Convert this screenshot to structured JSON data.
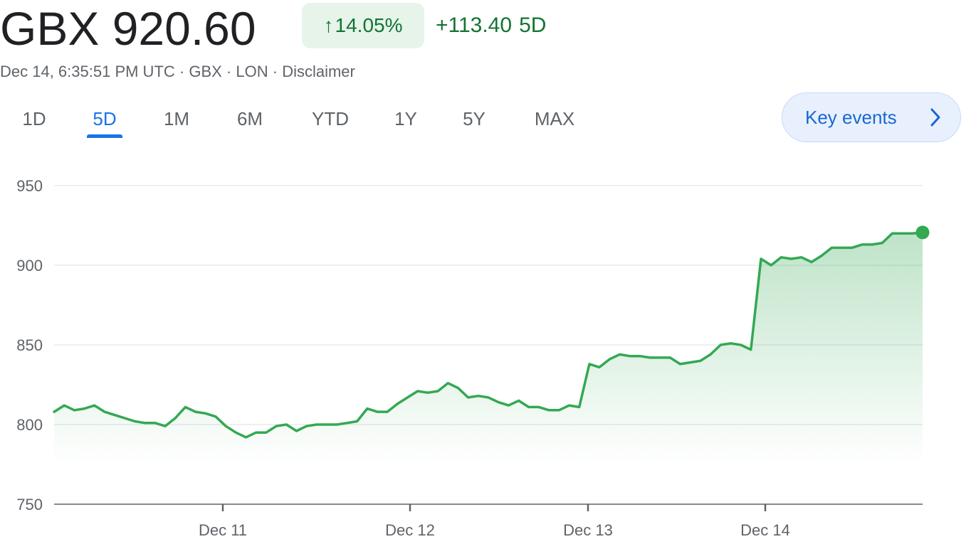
{
  "quote": {
    "price_text": "GBX 920.60",
    "pct_change": "14.05%",
    "abs_change": "+113.40",
    "period": "5D",
    "updated": "Dec 14, 6:35:51 PM UTC",
    "currency": "GBX",
    "exchange": "LON",
    "disclaimer": "Disclaimer",
    "separator": " · "
  },
  "tabs": [
    {
      "label": "1D",
      "active": false
    },
    {
      "label": "5D",
      "active": true
    },
    {
      "label": "1M",
      "active": false
    },
    {
      "label": "6M",
      "active": false
    },
    {
      "label": "YTD",
      "active": false
    },
    {
      "label": "1Y",
      "active": false
    },
    {
      "label": "5Y",
      "active": false
    },
    {
      "label": "MAX",
      "active": false
    }
  ],
  "key_events": {
    "label": "Key events",
    "icon": "chevron-right-icon"
  },
  "colors": {
    "line": "#34a853",
    "positive_text": "#137333",
    "positive_bg": "#e6f4ea",
    "accent": "#1a73e8",
    "grid": "#e8eaed",
    "axis_text": "#5f6368"
  },
  "chart_data": {
    "type": "area",
    "title": "",
    "xlabel": "",
    "ylabel": "",
    "ylim": [
      750,
      950
    ],
    "yticks": [
      950,
      900,
      850,
      800,
      750
    ],
    "xticks": [
      "Dec 11",
      "Dec 12",
      "Dec 13",
      "Dec 14"
    ],
    "grid": true,
    "series": [
      {
        "values": [
          808,
          812,
          809,
          810,
          812,
          808,
          806,
          804,
          802,
          801,
          801,
          799,
          804,
          811,
          808,
          807,
          805,
          799,
          795,
          792,
          795,
          795,
          799,
          800,
          796,
          799,
          800,
          800,
          800,
          801,
          802,
          810,
          808,
          808,
          813,
          817,
          821,
          820,
          821,
          826,
          823,
          817,
          818,
          817,
          814,
          812,
          815,
          811,
          811,
          809,
          809,
          812,
          811,
          838,
          836,
          841,
          844,
          843,
          843,
          842,
          842,
          842,
          838,
          839,
          840,
          844,
          850,
          851,
          850,
          847,
          904,
          900,
          905,
          904,
          905,
          902,
          906,
          911,
          911,
          911,
          913,
          913,
          914,
          920,
          920,
          920,
          920.6
        ]
      }
    ],
    "last_value": 920.6
  }
}
